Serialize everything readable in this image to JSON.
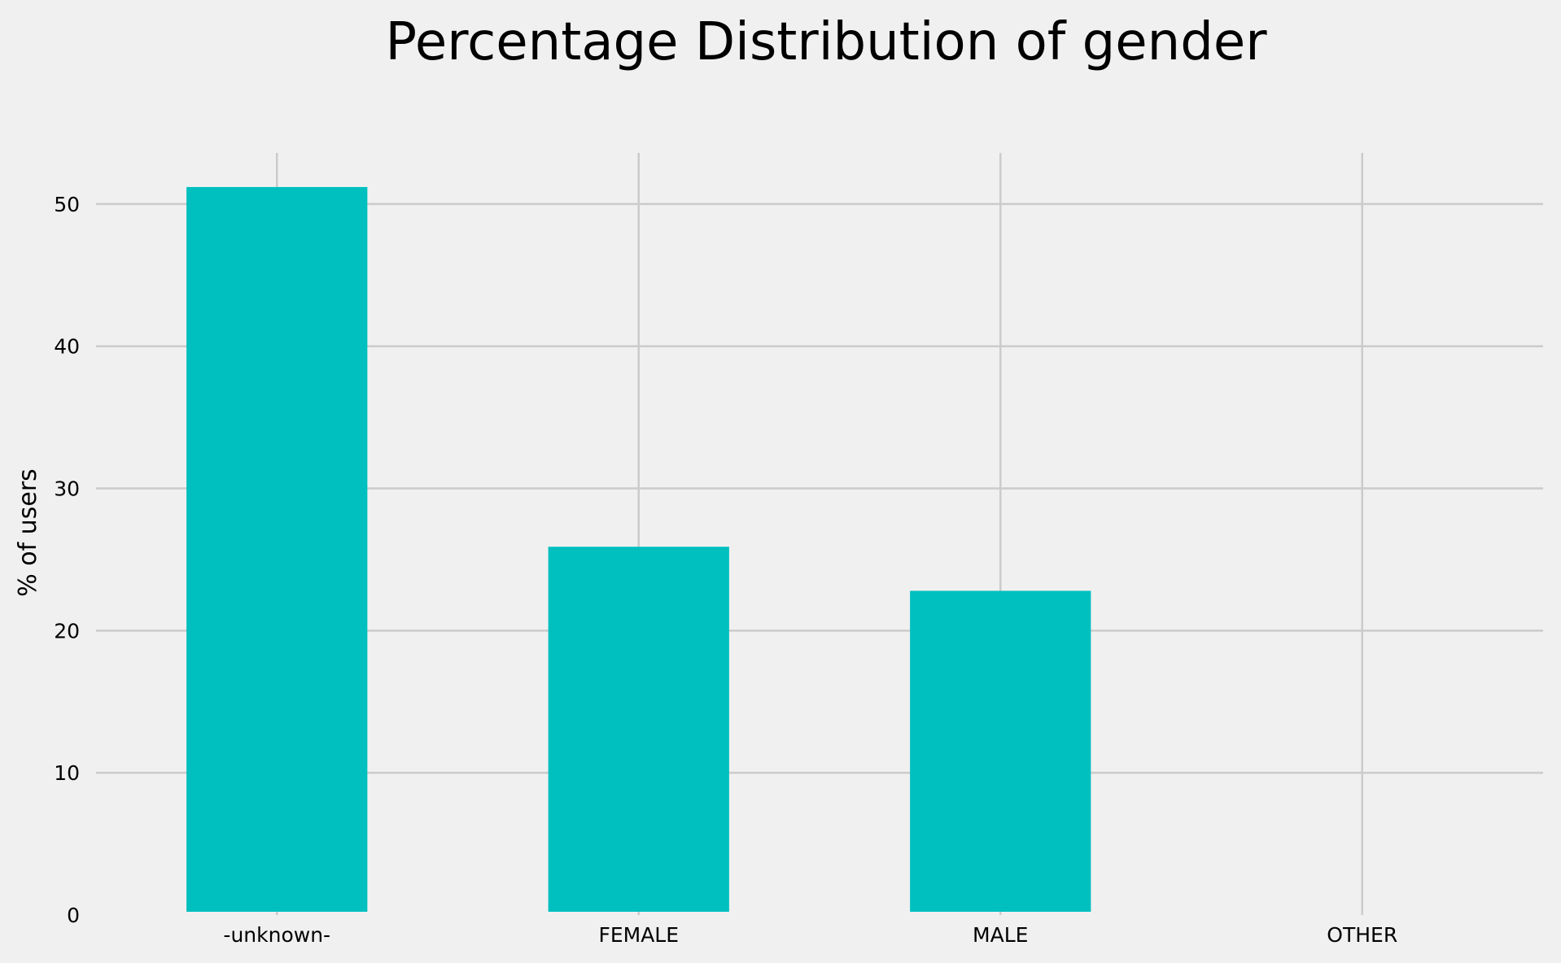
{
  "chart_data": {
    "type": "bar",
    "title": "Percentage Distribution of gender",
    "xlabel": "",
    "ylabel": "% of users",
    "categories": [
      "-unknown-",
      "FEMALE",
      "MALE",
      "OTHER"
    ],
    "values": [
      51.2,
      25.9,
      22.8,
      0.01
    ],
    "ylim": [
      0,
      53.6
    ],
    "yticks": [
      0,
      10,
      20,
      30,
      40,
      50
    ],
    "grid": true,
    "bar_color": "#00bfbf",
    "background_color": "#f0f0f0",
    "grid_color": "#cbcbcb"
  }
}
